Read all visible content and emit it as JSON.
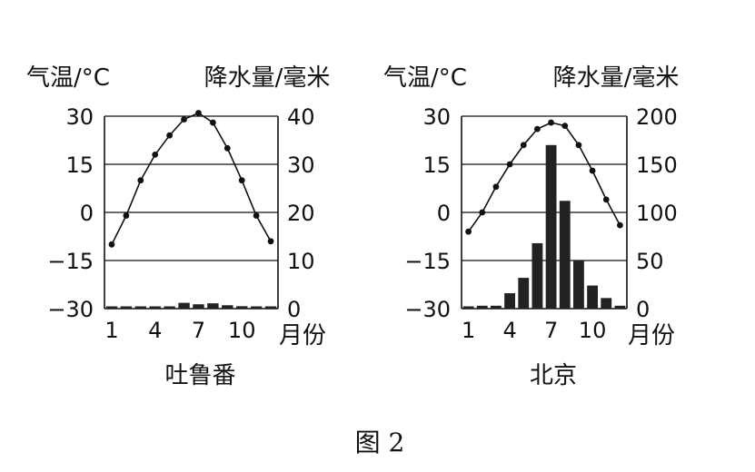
{
  "figure_caption": "图 2",
  "chart_data": [
    {
      "type": "climate",
      "title": "吐鲁番",
      "ylabel_left": "气温/°C",
      "ylabel_right": "降水量/毫米",
      "xlabel": "月份",
      "x": [
        1,
        2,
        3,
        4,
        5,
        6,
        7,
        8,
        9,
        10,
        11,
        12
      ],
      "x_ticks": [
        "1",
        "4",
        "7",
        "10"
      ],
      "temp_ylim": [
        -30,
        30
      ],
      "temp_ticks": [
        "30",
        "15",
        "0",
        "−15",
        "−30"
      ],
      "precip_ylim": [
        0,
        40
      ],
      "precip_ticks": [
        "40",
        "30",
        "20",
        "10",
        "0"
      ],
      "temperature": [
        -10,
        -1,
        10,
        18,
        24,
        29,
        31,
        28,
        20,
        10,
        -1,
        -9
      ],
      "precipitation": [
        0.3,
        0.2,
        0.2,
        0.3,
        0.4,
        1.2,
        0.9,
        1.1,
        0.7,
        0.5,
        0.4,
        0.3
      ],
      "grid": true
    },
    {
      "type": "climate",
      "title": "北京",
      "ylabel_left": "气温/°C",
      "ylabel_right": "降水量/毫米",
      "xlabel": "月份",
      "x": [
        1,
        2,
        3,
        4,
        5,
        6,
        7,
        8,
        9,
        10,
        11,
        12
      ],
      "x_ticks": [
        "1",
        "4",
        "7",
        "10"
      ],
      "temp_ylim": [
        -30,
        30
      ],
      "temp_ticks": [
        "30",
        "15",
        "0",
        "−15",
        "−30"
      ],
      "precip_ylim": [
        0,
        200
      ],
      "precip_ticks": [
        "200",
        "150",
        "100",
        "50",
        "0"
      ],
      "temperature": [
        -6,
        0,
        8,
        15,
        21,
        26,
        28,
        27,
        21,
        13,
        4,
        -4
      ],
      "precipitation": [
        2,
        3,
        3,
        16,
        32,
        68,
        170,
        112,
        50,
        24,
        11,
        3
      ],
      "grid": true
    }
  ]
}
